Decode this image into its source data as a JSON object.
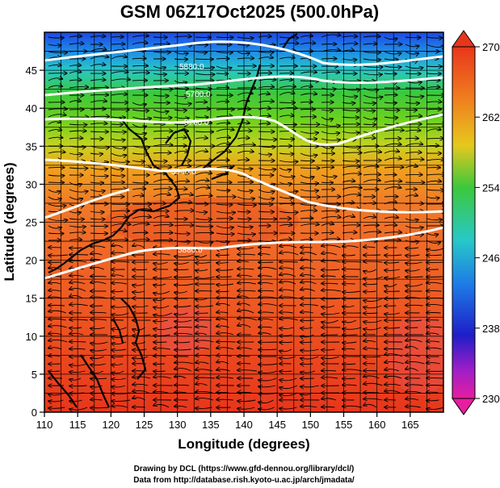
{
  "title": "GSM 06Z17Oct2025 (500.0hPa)",
  "xlabel": "Longitude (degrees)",
  "ylabel": "Latitude  (degrees)",
  "x_ticks": [
    "110",
    "115",
    "120",
    "125",
    "130",
    "135",
    "140",
    "145",
    "150",
    "155",
    "160",
    "165"
  ],
  "y_ticks": [
    "0",
    "5",
    "10",
    "15",
    "20",
    "25",
    "30",
    "35",
    "40",
    "45"
  ],
  "colorbar_ticks": [
    "270",
    "262",
    "254",
    "246",
    "238",
    "230"
  ],
  "contour_labels": [
    "5880.0",
    "5700.0",
    "5940.0",
    "5760.0"
  ],
  "credits": {
    "line1": "Drawing by DCL (https://www.gfd-dennou.org/library/dcl/)",
    "line2": "Data from http://database.rish.kyoto-u.ac.jp/arch/jmadata/"
  },
  "colors": {
    "warm": "#e8361c",
    "orange": "#f08a1e",
    "yellow": "#d6d21a",
    "green": "#3cc83c",
    "cyan": "#28c8c8",
    "blue": "#1e50e6",
    "magenta": "#e61ea0"
  }
}
